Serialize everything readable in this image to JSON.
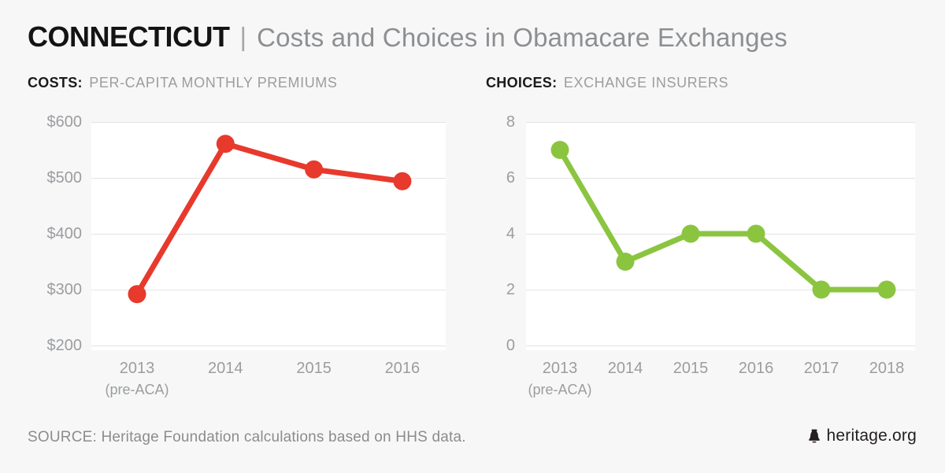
{
  "header": {
    "state": "CONNECTICUT",
    "separator": "|",
    "title": "Costs and Choices in Obamacare Exchanges"
  },
  "chart_data": [
    {
      "type": "line",
      "id": "costs",
      "label": "COSTS:",
      "sublabel": "PER-CAPITA MONTHLY PREMIUMS",
      "categories": [
        "2013",
        "2014",
        "2015",
        "2016"
      ],
      "category_note": {
        "index": 0,
        "text": "(pre-ACA)"
      },
      "values": [
        292,
        561,
        515,
        494
      ],
      "ylabel": "",
      "xlabel": "",
      "ylim": [
        200,
        600
      ],
      "yticks": [
        "$600",
        "$500",
        "$400",
        "$300",
        "$200"
      ],
      "grid": true,
      "legend": "none",
      "line_color": "#e8392d"
    },
    {
      "type": "line",
      "id": "choices",
      "label": "CHOICES:",
      "sublabel": "EXCHANGE INSURERS",
      "categories": [
        "2013",
        "2014",
        "2015",
        "2016",
        "2017",
        "2018"
      ],
      "category_note": {
        "index": 0,
        "text": "(pre-ACA)"
      },
      "values": [
        7,
        3,
        4,
        4,
        2,
        2
      ],
      "ylabel": "",
      "xlabel": "",
      "ylim": [
        0,
        8
      ],
      "yticks": [
        "8",
        "6",
        "4",
        "2",
        "0"
      ],
      "grid": true,
      "legend": "none",
      "line_color": "#8bc540"
    }
  ],
  "footer": {
    "source": "SOURCE: Heritage Foundation calculations based on HHS data.",
    "brand": "heritage.org",
    "brand_icon": "liberty-bell-icon"
  },
  "colors": {
    "background": "#f7f7f7",
    "panel": "#ffffff",
    "gridline": "#e4e4e4",
    "costs_red": "#e8392d",
    "choices_green": "#8bc540",
    "tick_gray": "#9b9da0",
    "title_gray": "#8d8f92",
    "ink": "#231f20"
  }
}
